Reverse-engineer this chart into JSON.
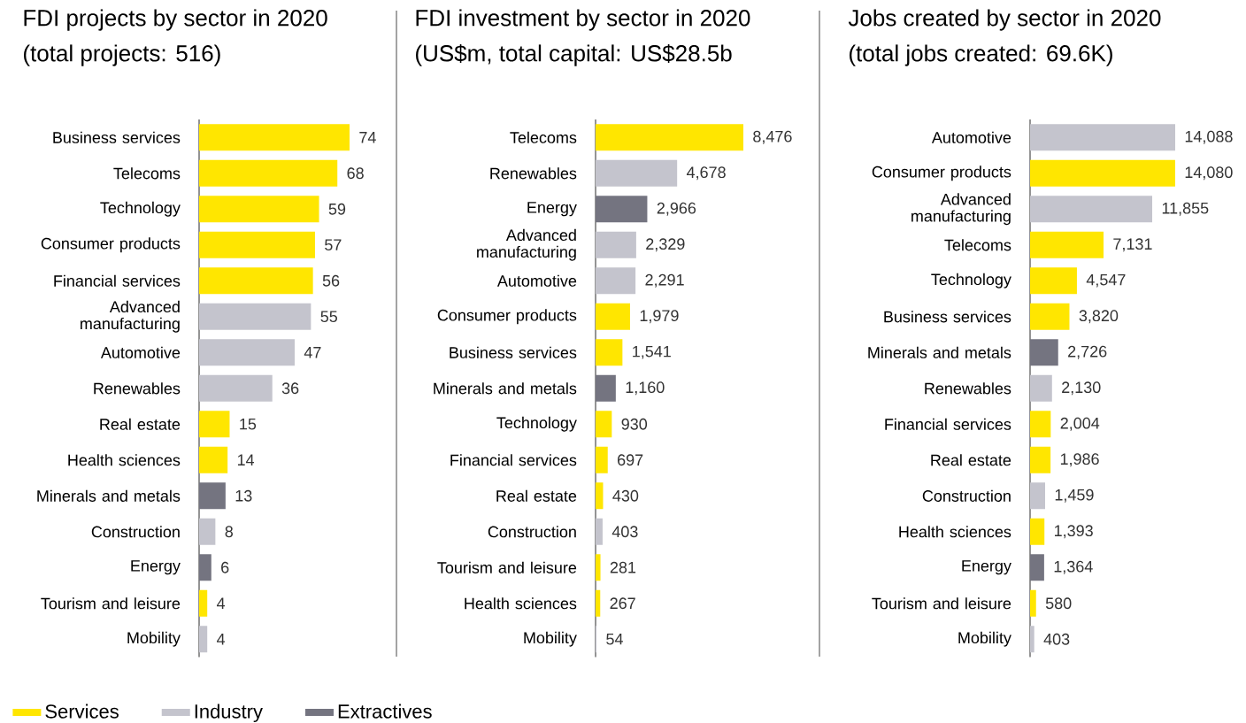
{
  "chart_data": [
    {
      "type": "bar",
      "orientation": "horizontal",
      "title": "FDI projects by sector in 2020",
      "subtitle": "(total projects: 516)",
      "legend": "bottom left",
      "categories": [
        "Business services",
        "Telecoms",
        "Technology",
        "Consumer products",
        "Financial services",
        "Advanced manufacturing",
        "Automotive",
        "Renewables",
        "Real estate",
        "Health sciences",
        "Minerals and metals",
        "Construction",
        "Energy",
        "Tourism and leisure",
        "Mobility"
      ],
      "series": [
        {
          "name": "Services",
          "color": "#ffe600",
          "values": [
            74,
            68,
            59,
            57,
            56,
            null,
            null,
            null,
            15,
            14,
            null,
            null,
            null,
            4,
            null
          ],
          "value_labels": [
            "74",
            "68",
            "59",
            "57",
            "56",
            null,
            null,
            null,
            "15",
            "14",
            null,
            null,
            null,
            "4",
            null
          ]
        },
        {
          "name": "Industry",
          "color": "#c4c4cd",
          "values": [
            null,
            null,
            null,
            null,
            null,
            55,
            47,
            36,
            null,
            null,
            null,
            8,
            null,
            null,
            4
          ],
          "value_labels": [
            null,
            null,
            null,
            null,
            null,
            "55",
            "47",
            "36",
            null,
            null,
            null,
            "8",
            null,
            null,
            "4"
          ]
        },
        {
          "name": "Extractives",
          "color": "#747480",
          "values": [
            null,
            null,
            null,
            null,
            null,
            null,
            null,
            null,
            null,
            null,
            13,
            null,
            6,
            null,
            null
          ],
          "value_labels": [
            null,
            null,
            null,
            null,
            null,
            null,
            null,
            null,
            null,
            null,
            "13",
            null,
            "6",
            null,
            null
          ]
        }
      ]
    },
    {
      "type": "bar",
      "orientation": "horizontal",
      "title": "FDI investment by sector in 2020",
      "subtitle": "(US$m, total capital: US$28.5b",
      "categories": [
        "Telecoms",
        "Renewables",
        "Energy",
        "Advanced manufacturing",
        "Automotive",
        "Consumer products",
        "Business services",
        "Minerals and metals",
        "Technology",
        "Financial services",
        "Real estate",
        "Construction",
        "Tourism and leisure",
        "Health sciences",
        "Mobility"
      ],
      "series": [
        {
          "color": "#ffe600",
          "values": [
            8476,
            null,
            null,
            null,
            null,
            1979,
            1541,
            null,
            930,
            697,
            430,
            null,
            281,
            267,
            null
          ],
          "value_labels": [
            "8,476",
            null,
            null,
            null,
            null,
            "1,979",
            "1,541",
            null,
            "930",
            "697",
            "430",
            null,
            "281",
            "267",
            null
          ]
        },
        {
          "color": "#c4c4cd",
          "values": [
            null,
            4678,
            null,
            2329,
            2291,
            null,
            null,
            null,
            null,
            null,
            null,
            403,
            null,
            null,
            54
          ],
          "value_labels": [
            null,
            "4,678",
            null,
            "2,329",
            "2,291",
            null,
            null,
            null,
            null,
            null,
            null,
            "403",
            null,
            null,
            "54"
          ]
        },
        {
          "color": "#747480",
          "values": [
            null,
            null,
            2966,
            null,
            null,
            null,
            null,
            1160,
            null,
            null,
            null,
            null,
            null,
            null,
            null
          ],
          "value_labels": [
            null,
            null,
            "2,966",
            null,
            null,
            null,
            null,
            "1,160",
            null,
            null,
            null,
            null,
            null,
            null,
            null
          ]
        }
      ]
    },
    {
      "type": "bar",
      "orientation": "horizontal",
      "title": "Jobs created by sector in 2020",
      "subtitle": "(total jobs created: 69.6K)",
      "categories": [
        "Automotive",
        "Consumer products",
        "Advanced manufacturing",
        "Telecoms",
        "Technology",
        "Business services",
        "Minerals and metals",
        "Renewables",
        "Financial services",
        "Real estate",
        "Construction",
        "Health sciences",
        "Energy",
        "Tourism and leisure",
        "Mobility"
      ],
      "series": [
        {
          "color": "#ffe600",
          "values": [
            null,
            14080,
            null,
            7131,
            4547,
            3820,
            null,
            null,
            2004,
            1986,
            null,
            1393,
            null,
            580,
            null
          ],
          "value_labels": [
            null,
            "14,080",
            null,
            "7,131",
            "4,547",
            "3,820",
            null,
            null,
            "2,004",
            "1,986",
            null,
            "1,393",
            null,
            "580",
            null
          ]
        },
        {
          "color": "#c4c4cd",
          "values": [
            14088,
            null,
            11855,
            null,
            null,
            null,
            null,
            2130,
            null,
            null,
            1459,
            null,
            null,
            null,
            403
          ],
          "value_labels": [
            "14,088",
            null,
            "11,855",
            null,
            null,
            null,
            null,
            "2,130",
            null,
            null,
            "1,459",
            null,
            null,
            null,
            "403"
          ]
        },
        {
          "color": "#747480",
          "values": [
            null,
            null,
            null,
            null,
            null,
            null,
            2726,
            null,
            null,
            null,
            null,
            null,
            1364,
            null,
            null
          ],
          "value_labels": [
            null,
            null,
            null,
            null,
            null,
            null,
            "2,726",
            null,
            null,
            null,
            null,
            null,
            "1,364",
            null,
            null
          ]
        }
      ]
    }
  ]
}
